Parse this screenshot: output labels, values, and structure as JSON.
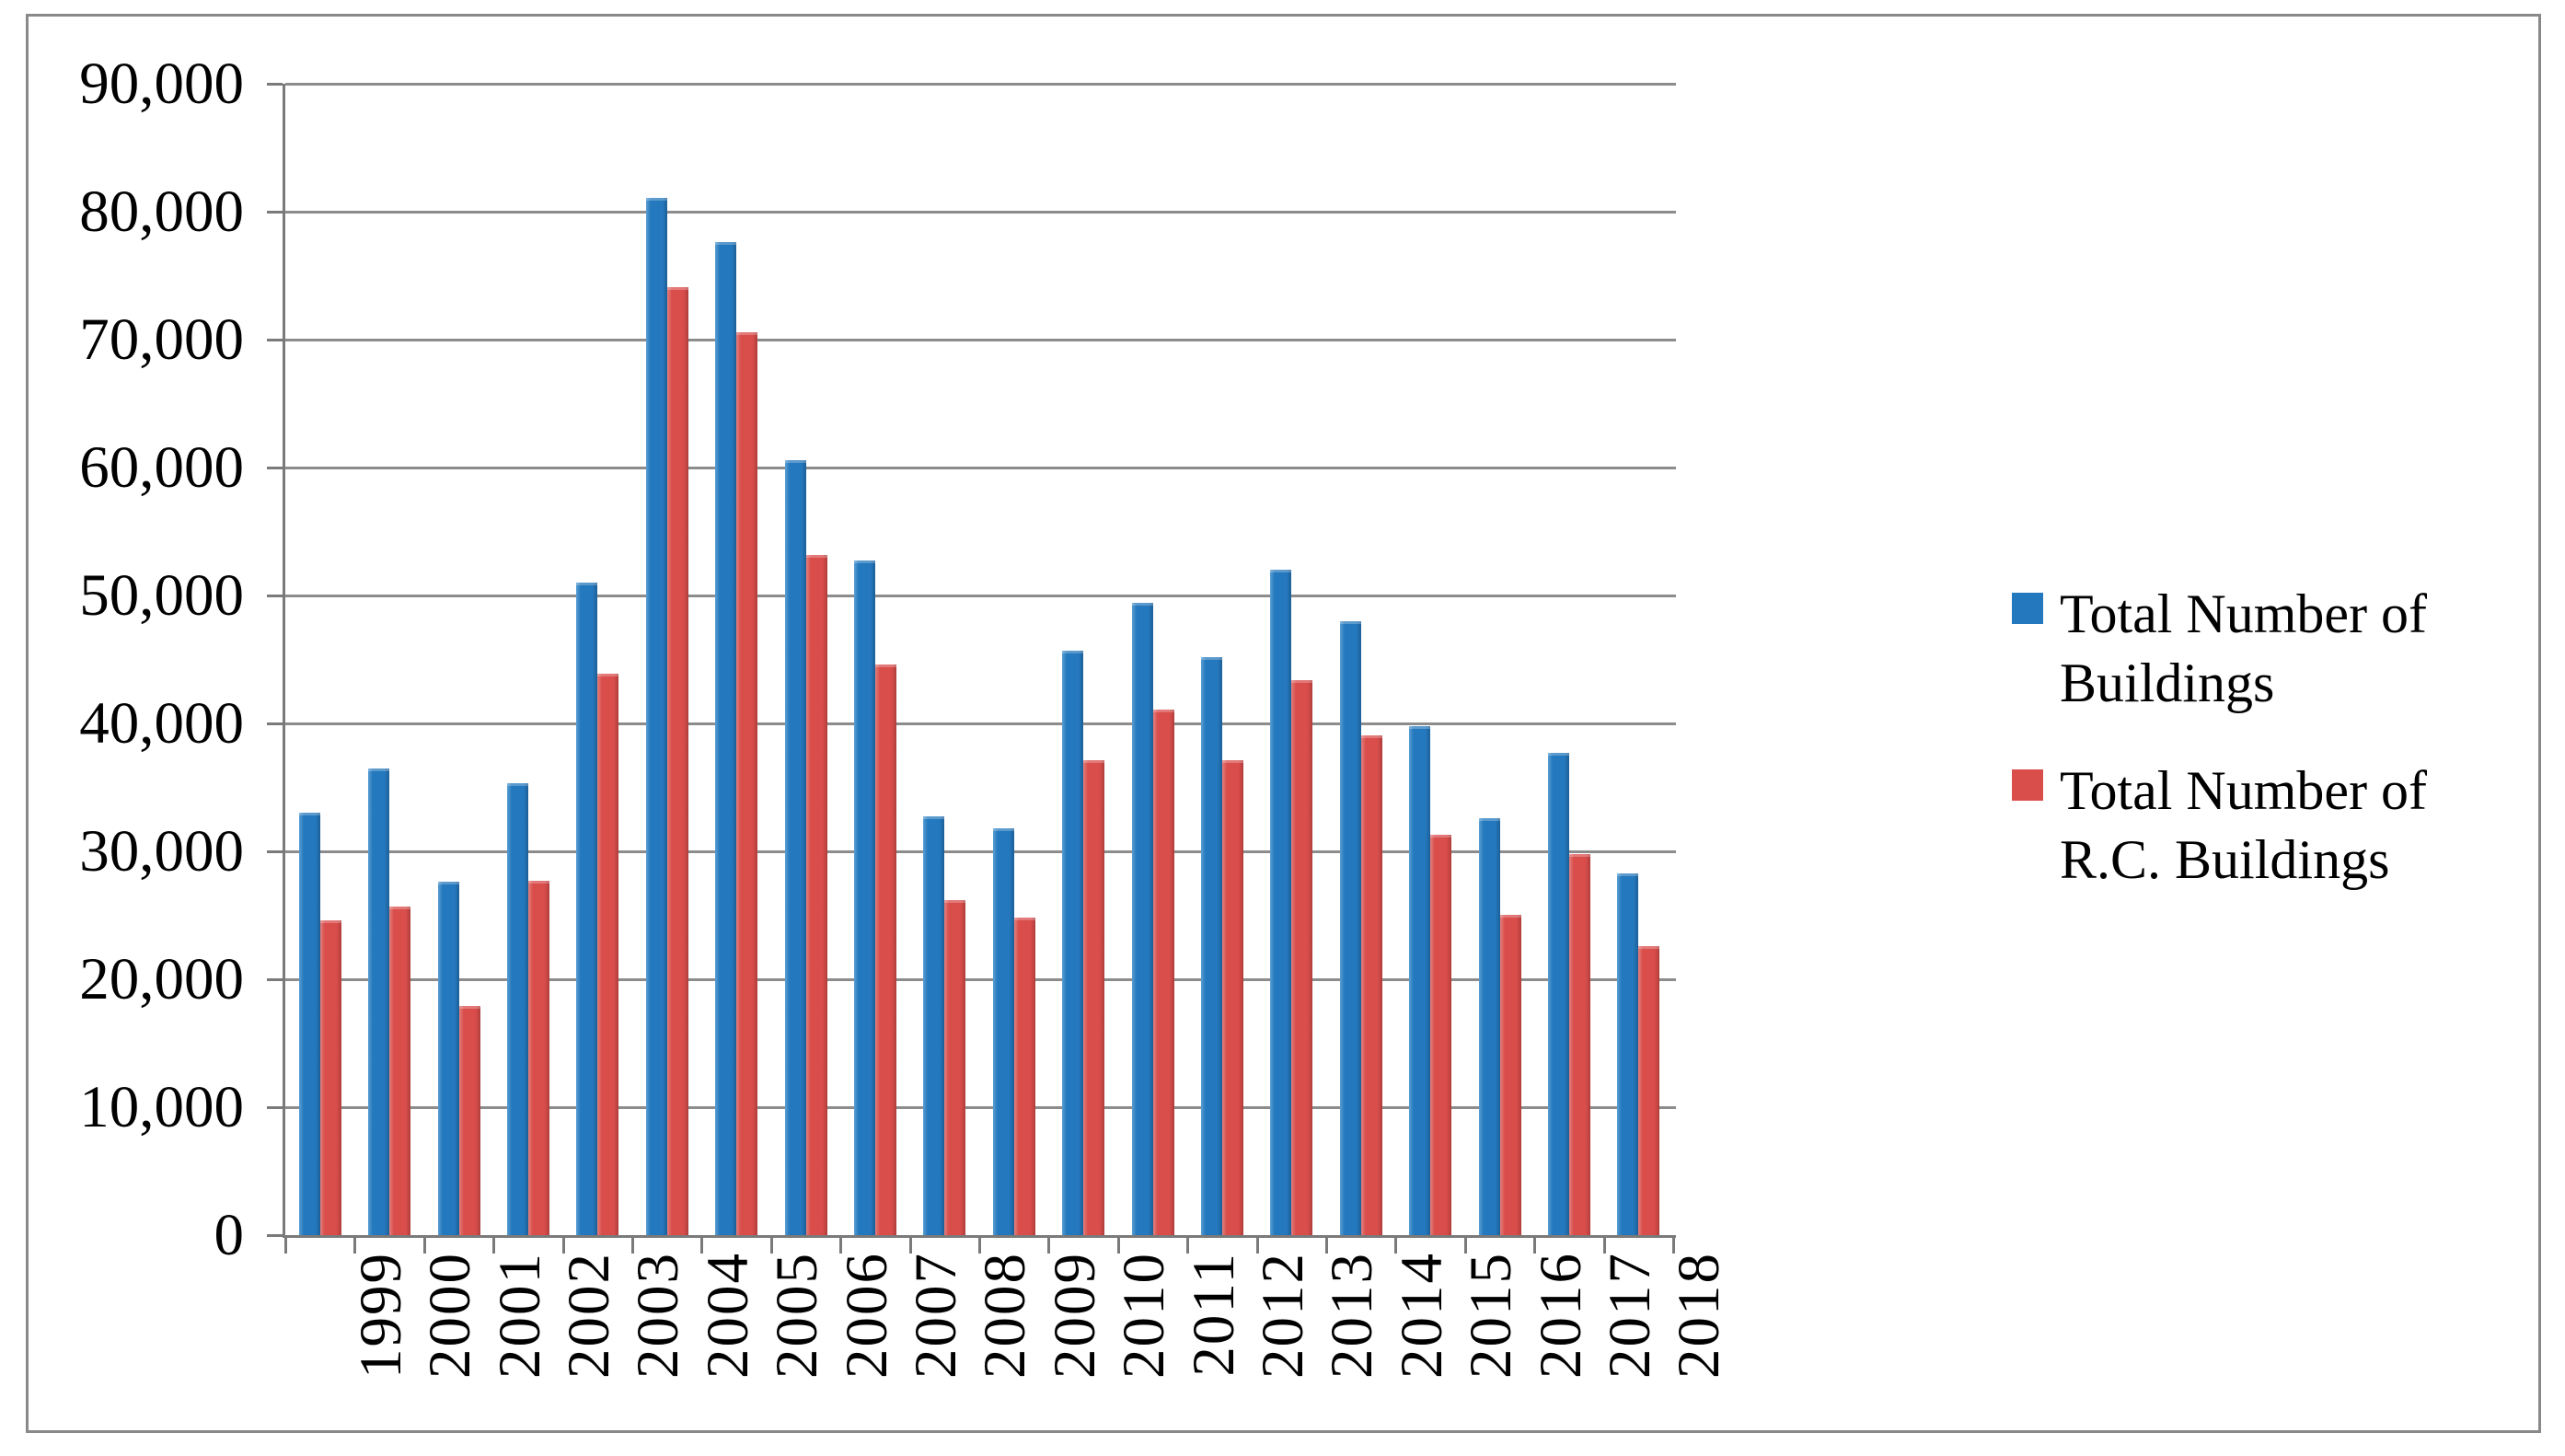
{
  "chart_data": {
    "type": "bar",
    "title": "",
    "categories": [
      "1999",
      "2000",
      "2001",
      "2002",
      "2003",
      "2004",
      "2005",
      "2006",
      "2007",
      "2008",
      "2009",
      "2010",
      "2011",
      "2012",
      "2013",
      "2014",
      "2015",
      "2016",
      "2017",
      "2018"
    ],
    "series": [
      {
        "name": "Total Number of Buildings",
        "color": "#2478BD",
        "color_light": "#5a9fd4",
        "color_dark": "#1d5f96",
        "values": [
          33000,
          36500,
          27600,
          35300,
          51000,
          81100,
          77600,
          60600,
          52700,
          32700,
          31800,
          45700,
          49400,
          45200,
          52000,
          48000,
          39800,
          32600,
          37700,
          28300
        ]
      },
      {
        "name": "Total Number of R.C. Buildings",
        "color": "#D94D4B",
        "color_light": "#e3807e",
        "color_dark": "#ae3d3b",
        "values": [
          24600,
          25700,
          17900,
          27700,
          43900,
          74100,
          70600,
          53200,
          44600,
          26200,
          24800,
          37100,
          41100,
          37100,
          43400,
          39100,
          31300,
          25000,
          29800,
          22600
        ]
      }
    ],
    "y_axis": {
      "min": 0,
      "max": 90000,
      "step": 10000,
      "tick_labels": [
        "0",
        "10,000",
        "20,000",
        "30,000",
        "40,000",
        "50,000",
        "60,000",
        "70,000",
        "80,000",
        "90,000"
      ]
    },
    "x_axis": {
      "tick_labels": [
        "1999",
        "2000",
        "2001",
        "2002",
        "2003",
        "2004",
        "2005",
        "2006",
        "2007",
        "2008",
        "2009",
        "2010",
        "2011",
        "2012",
        "2013",
        "2014",
        "2015",
        "2016",
        "2017",
        "2018"
      ]
    },
    "legend_position": "right",
    "grid": true,
    "colors": {
      "grid": "#8c8c8c",
      "axis": "#7a7a7a",
      "frame_border": "#898989",
      "background": "#ffffff",
      "text": "#000000"
    }
  }
}
